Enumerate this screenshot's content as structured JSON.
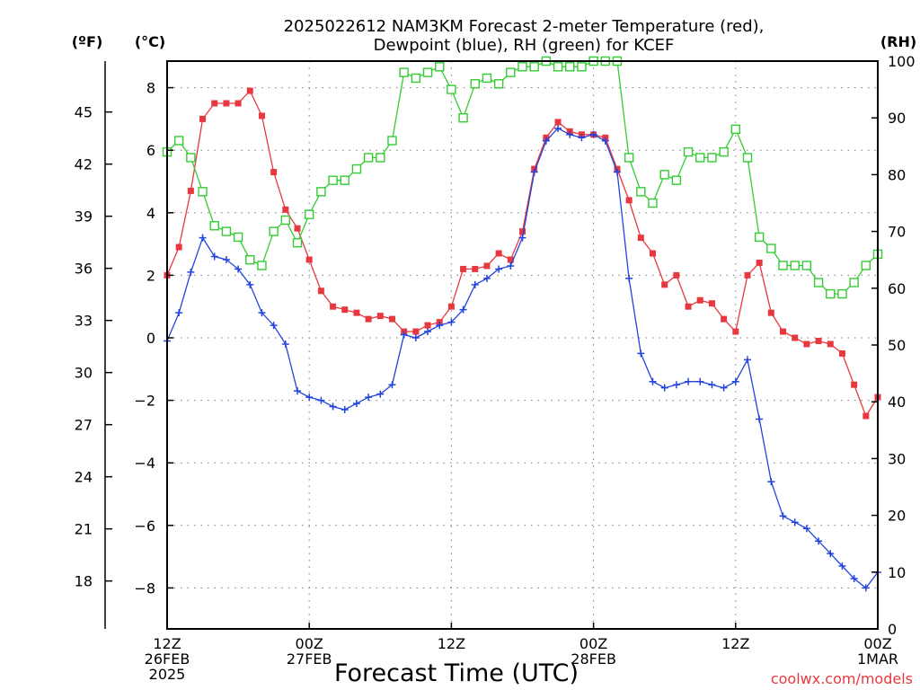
{
  "chart_data": {
    "type": "line",
    "title": "2025022612 NAM3KM Forecast 2-meter Temperature (red),",
    "subtitle": "Dewpoint (blue), RH (green) for KCEF",
    "xlabel": "Forecast Time (UTC)",
    "watermark": "coolwx.com/models",
    "x_range_hours": [
      0,
      60
    ],
    "x_ticks": [
      {
        "hour": 0,
        "line1": "12Z",
        "line2": "26FEB",
        "line3": "2025"
      },
      {
        "hour": 12,
        "line1": "00Z",
        "line2": "27FEB",
        "line3": ""
      },
      {
        "hour": 24,
        "line1": "12Z",
        "line2": "",
        "line3": ""
      },
      {
        "hour": 36,
        "line1": "00Z",
        "line2": "28FEB",
        "line3": ""
      },
      {
        "hour": 48,
        "line1": "12Z",
        "line2": "",
        "line3": ""
      },
      {
        "hour": 60,
        "line1": "00Z",
        "line2": "1MAR",
        "line3": ""
      }
    ],
    "y_left_unit": "(°C)",
    "y_left_range": [
      -9.2,
      9.0
    ],
    "y_left_ticks": [
      "8",
      "6",
      "4",
      "2",
      "0",
      "−2",
      "−4",
      "−6",
      "−8"
    ],
    "y_far_left_unit": "(ºF)",
    "y_far_left_ticks": [
      "45",
      "42",
      "39",
      "36",
      "33",
      "30",
      "27",
      "24",
      "21",
      "18"
    ],
    "y_right_unit": "(RH)",
    "y_right_range": [
      0,
      100
    ],
    "y_right_ticks": [
      "100",
      "90",
      "80",
      "70",
      "60",
      "50",
      "40",
      "30",
      "20",
      "10",
      "0"
    ],
    "grid": true,
    "series": [
      {
        "name": "2-meter Temperature",
        "color": "#e8383f",
        "marker": "filled-square",
        "axis": "left",
        "x": [
          0,
          1,
          2,
          3,
          4,
          5,
          6,
          7,
          8,
          9,
          10,
          11,
          12,
          13,
          14,
          15,
          16,
          17,
          18,
          19,
          20,
          21,
          22,
          23,
          24,
          25,
          26,
          27,
          28,
          29,
          30,
          31,
          32,
          33,
          34,
          35,
          36,
          37,
          38,
          39,
          40,
          41,
          42,
          43,
          44,
          45,
          46,
          47,
          48,
          49,
          50,
          51,
          52,
          53,
          54,
          55,
          56,
          57,
          58,
          59,
          60
        ],
        "values": [
          2.0,
          2.9,
          4.7,
          7.0,
          7.5,
          7.5,
          7.5,
          7.9,
          7.1,
          5.3,
          4.1,
          3.5,
          2.5,
          1.5,
          1.0,
          0.9,
          0.8,
          0.6,
          0.7,
          0.6,
          0.2,
          0.2,
          0.4,
          0.5,
          1.0,
          2.2,
          2.2,
          2.3,
          2.7,
          2.5,
          3.4,
          5.4,
          6.4,
          6.9,
          6.6,
          6.5,
          6.5,
          6.4,
          5.4,
          4.4,
          3.2,
          2.7,
          1.7,
          2.0,
          1.0,
          1.2,
          1.1,
          0.6,
          0.2,
          2.0,
          2.4,
          0.8,
          0.2,
          0.0,
          -0.2,
          -0.1,
          -0.2,
          -0.5,
          -1.5,
          -2.5,
          -1.9
        ]
      },
      {
        "name": "Dewpoint",
        "color": "#2244dd",
        "marker": "plus",
        "axis": "left",
        "x": [
          0,
          1,
          2,
          3,
          4,
          5,
          6,
          7,
          8,
          9,
          10,
          11,
          12,
          13,
          14,
          15,
          16,
          17,
          18,
          19,
          20,
          21,
          22,
          23,
          24,
          25,
          26,
          27,
          28,
          29,
          30,
          31,
          32,
          33,
          34,
          35,
          36,
          37,
          38,
          39,
          40,
          41,
          42,
          43,
          44,
          45,
          46,
          47,
          48,
          49,
          50,
          51,
          52,
          53,
          54,
          55,
          56,
          57,
          58,
          59,
          60
        ],
        "values": [
          -0.1,
          0.8,
          2.1,
          3.2,
          2.6,
          2.5,
          2.2,
          1.7,
          0.8,
          0.4,
          -0.2,
          -1.7,
          -1.9,
          -2.0,
          -2.2,
          -2.3,
          -2.1,
          -1.9,
          -1.8,
          -1.5,
          0.1,
          0.0,
          0.2,
          0.4,
          0.5,
          0.9,
          1.7,
          1.9,
          2.2,
          2.3,
          3.2,
          5.3,
          6.3,
          6.7,
          6.5,
          6.4,
          6.5,
          6.3,
          5.3,
          1.9,
          -0.5,
          -1.4,
          -1.6,
          -1.5,
          -1.4,
          -1.4,
          -1.5,
          -1.6,
          -1.4,
          -0.7,
          -2.6,
          -4.6,
          -5.7,
          -5.9,
          -6.1,
          -6.5,
          -6.9,
          -7.3,
          -7.7,
          -8.0,
          -7.5
        ]
      },
      {
        "name": "RH",
        "color": "#33cc33",
        "marker": "open-square",
        "axis": "right",
        "x": [
          0,
          1,
          2,
          3,
          4,
          5,
          6,
          7,
          8,
          9,
          10,
          11,
          12,
          13,
          14,
          15,
          16,
          17,
          18,
          19,
          20,
          21,
          22,
          23,
          24,
          25,
          26,
          27,
          28,
          29,
          30,
          31,
          32,
          33,
          34,
          35,
          36,
          37,
          38,
          39,
          40,
          41,
          42,
          43,
          44,
          45,
          46,
          47,
          48,
          49,
          50,
          51,
          52,
          53,
          54,
          55,
          56,
          57,
          58,
          59,
          60
        ],
        "values": [
          84,
          86,
          83,
          77,
          71,
          70,
          69,
          65,
          64,
          70,
          72,
          68,
          73,
          77,
          79,
          79,
          81,
          83,
          83,
          86,
          98,
          97,
          98,
          99,
          95,
          90,
          96,
          97,
          96,
          98,
          99,
          99,
          100,
          99,
          99,
          99,
          100,
          100,
          100,
          83,
          77,
          75,
          80,
          79,
          84,
          83,
          83,
          84,
          88,
          83,
          69,
          67,
          64,
          64,
          64,
          61,
          59,
          59,
          61,
          64,
          66
        ]
      }
    ]
  }
}
